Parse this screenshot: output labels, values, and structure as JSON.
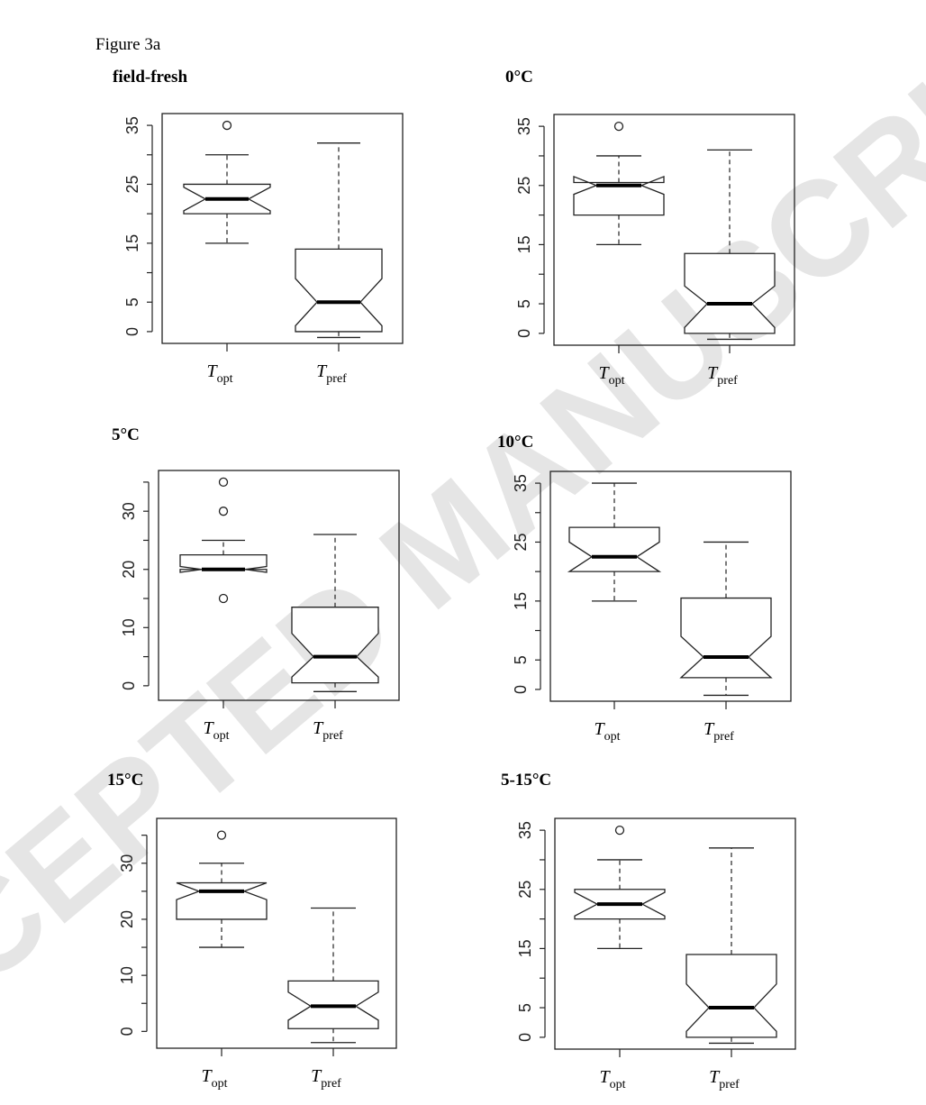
{
  "figure_label": "Figure 3a",
  "watermark": "ACCEPTED MANUSCRIPT",
  "chart_data": [
    {
      "type": "box",
      "title": "field-fresh",
      "categories": [
        {
          "main": "T",
          "sub": "opt"
        },
        {
          "main": "T",
          "sub": "pref"
        }
      ],
      "yticks": [
        0,
        5,
        15,
        25,
        35
      ],
      "ylim": [
        -2,
        37
      ],
      "boxes": [
        {
          "whisker_low": 15,
          "q1": 20,
          "median": 22.5,
          "q3": 25,
          "whisker_high": 30,
          "notch_low": 20.5,
          "notch_high": 24.5,
          "outliers": [
            35
          ]
        },
        {
          "whisker_low": -1,
          "q1": 0,
          "median": 5,
          "q3": 14,
          "whisker_high": 32,
          "notch_low": 1,
          "notch_high": 9,
          "outliers": []
        }
      ]
    },
    {
      "type": "box",
      "title": "0°C",
      "categories": [
        {
          "main": "T",
          "sub": "opt"
        },
        {
          "main": "T",
          "sub": "pref"
        }
      ],
      "yticks": [
        0,
        5,
        15,
        25,
        35
      ],
      "ylim": [
        -2,
        37
      ],
      "boxes": [
        {
          "whisker_low": 15,
          "q1": 20,
          "median": 25,
          "q3": 25.5,
          "whisker_high": 30,
          "notch_low": 23.5,
          "notch_high": 26.5,
          "outliers": [
            35
          ]
        },
        {
          "whisker_low": -1,
          "q1": 0,
          "median": 5,
          "q3": 13.5,
          "whisker_high": 31,
          "notch_low": 1,
          "notch_high": 8,
          "outliers": []
        }
      ]
    },
    {
      "type": "box",
      "title": "5°C",
      "categories": [
        {
          "main": "T",
          "sub": "opt"
        },
        {
          "main": "T",
          "sub": "pref"
        }
      ],
      "yticks": [
        0,
        10,
        20,
        30
      ],
      "ylim": [
        -2.5,
        37
      ],
      "boxes": [
        {
          "whisker_low": 20,
          "q1": 20,
          "median": 20,
          "q3": 22.5,
          "whisker_high": 25,
          "notch_low": 19.5,
          "notch_high": 20.5,
          "outliers": [
            15,
            30,
            35
          ]
        },
        {
          "whisker_low": -1,
          "q1": 0.5,
          "median": 5,
          "q3": 13.5,
          "whisker_high": 26,
          "notch_low": 1.5,
          "notch_high": 9,
          "outliers": []
        }
      ]
    },
    {
      "type": "box",
      "title": "10°C",
      "categories": [
        {
          "main": "T",
          "sub": "opt"
        },
        {
          "main": "T",
          "sub": "pref"
        }
      ],
      "yticks": [
        0,
        5,
        15,
        25,
        35
      ],
      "ylim": [
        -2,
        37
      ],
      "boxes": [
        {
          "whisker_low": 15,
          "q1": 20,
          "median": 22.5,
          "q3": 27.5,
          "whisker_high": 35,
          "notch_low": 20,
          "notch_high": 25,
          "outliers": []
        },
        {
          "whisker_low": -1,
          "q1": 2,
          "median": 5.5,
          "q3": 15.5,
          "whisker_high": 25,
          "notch_low": 2,
          "notch_high": 9,
          "outliers": []
        }
      ]
    },
    {
      "type": "box",
      "title": "15°C",
      "categories": [
        {
          "main": "T",
          "sub": "opt"
        },
        {
          "main": "T",
          "sub": "pref"
        }
      ],
      "yticks": [
        0,
        10,
        20,
        30
      ],
      "ylim": [
        -3,
        38
      ],
      "boxes": [
        {
          "whisker_low": 15,
          "q1": 20,
          "median": 25,
          "q3": 26.5,
          "whisker_high": 30,
          "notch_low": 23.5,
          "notch_high": 26.5,
          "outliers": [
            35
          ]
        },
        {
          "whisker_low": -2,
          "q1": 0.5,
          "median": 4.5,
          "q3": 9,
          "whisker_high": 22,
          "notch_low": 2,
          "notch_high": 7,
          "outliers": []
        }
      ]
    },
    {
      "type": "box",
      "title": "5-15°C",
      "categories": [
        {
          "main": "T",
          "sub": "opt"
        },
        {
          "main": "T",
          "sub": "pref"
        }
      ],
      "yticks": [
        0,
        5,
        15,
        25,
        35
      ],
      "ylim": [
        -2,
        37
      ],
      "boxes": [
        {
          "whisker_low": 15,
          "q1": 20,
          "median": 22.5,
          "q3": 25,
          "whisker_high": 30,
          "notch_low": 20.5,
          "notch_high": 24.5,
          "outliers": [
            35
          ]
        },
        {
          "whisker_low": -1,
          "q1": 0,
          "median": 5,
          "q3": 14,
          "whisker_high": 32,
          "notch_low": 1,
          "notch_high": 9,
          "outliers": []
        }
      ]
    }
  ]
}
